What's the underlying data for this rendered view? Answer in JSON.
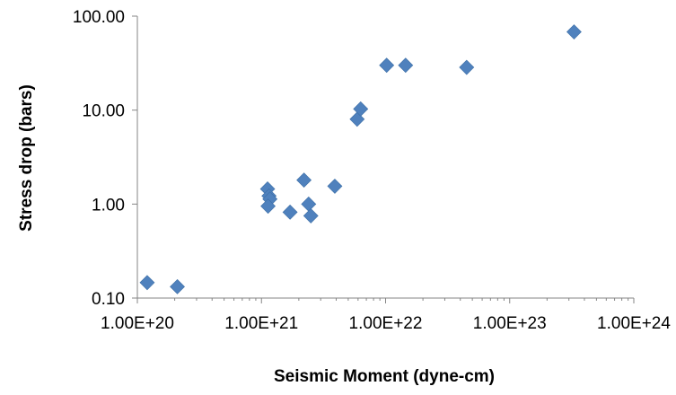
{
  "chart_data": {
    "type": "scatter",
    "xlabel": "Seismic Moment (dyne-cm)",
    "ylabel": "Stress drop (bars)",
    "x_scale": "log",
    "y_scale": "log",
    "xlim": [
      1e+20,
      1e+24
    ],
    "ylim": [
      0.1,
      100
    ],
    "x_tick_labels": [
      "1.00E+20",
      "1.00E+21",
      "1.00E+22",
      "1.00E+23",
      "1.00E+24"
    ],
    "y_tick_labels": [
      "0.10",
      "1.00",
      "10.00",
      "100.00"
    ],
    "grid": false,
    "legend": "none",
    "marker": "diamond",
    "marker_color": "#4f81bd",
    "series": [
      {
        "points": [
          {
            "x": 1.2e+20,
            "y": 0.146
          },
          {
            "x": 2.1e+20,
            "y": 0.132
          },
          {
            "x": 1.12e+21,
            "y": 1.45
          },
          {
            "x": 1.15e+21,
            "y": 1.22
          },
          {
            "x": 1.17e+21,
            "y": 1.13
          },
          {
            "x": 1.13e+21,
            "y": 0.95
          },
          {
            "x": 1.7e+21,
            "y": 0.82
          },
          {
            "x": 2.2e+21,
            "y": 1.8
          },
          {
            "x": 2.4e+21,
            "y": 1.0
          },
          {
            "x": 2.5e+21,
            "y": 0.75
          },
          {
            "x": 3.9e+21,
            "y": 1.55
          },
          {
            "x": 5.9e+21,
            "y": 8.0
          },
          {
            "x": 6.3e+21,
            "y": 10.3
          },
          {
            "x": 1.02e+22,
            "y": 30.0
          },
          {
            "x": 1.45e+22,
            "y": 30.0
          },
          {
            "x": 4.5e+22,
            "y": 28.5
          },
          {
            "x": 3.3e+23,
            "y": 68.0
          }
        ]
      }
    ]
  }
}
